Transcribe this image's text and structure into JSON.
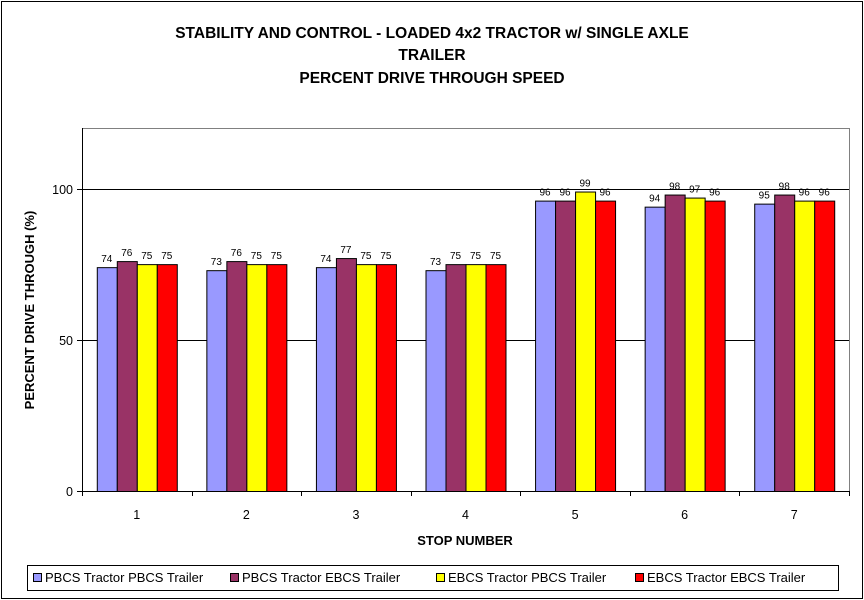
{
  "chart_data": {
    "type": "bar",
    "title_lines": [
      "STABILITY AND CONTROL - LOADED 4x2 TRACTOR w/ SINGLE AXLE",
      "TRAILER",
      "PERCENT DRIVE THROUGH SPEED"
    ],
    "xlabel": "STOP NUMBER",
    "ylabel": "PERCENT DRIVE THROUGH (%)",
    "ylim": [
      0,
      120
    ],
    "yticks": [
      0,
      50,
      100
    ],
    "categories": [
      "1",
      "2",
      "3",
      "4",
      "5",
      "6",
      "7"
    ],
    "grid": "horizontal major gridlines",
    "legend_position": "bottom",
    "series": [
      {
        "name": "PBCS Tractor PBCS Trailer",
        "color": "#9999ff",
        "values": [
          74,
          73,
          74,
          73,
          96,
          94,
          95
        ]
      },
      {
        "name": "PBCS Tractor EBCS Trailer",
        "color": "#993366",
        "values": [
          76,
          76,
          77,
          75,
          96,
          98,
          98
        ]
      },
      {
        "name": "EBCS Tractor PBCS Trailer",
        "color": "#ffff00",
        "values": [
          75,
          75,
          75,
          75,
          99,
          97,
          96
        ]
      },
      {
        "name": "EBCS Tractor EBCS Trailer",
        "color": "#ff0000",
        "values": [
          75,
          75,
          75,
          75,
          96,
          96,
          96
        ]
      }
    ],
    "plot_background": "#ffffff",
    "frame_color": "#000000"
  }
}
